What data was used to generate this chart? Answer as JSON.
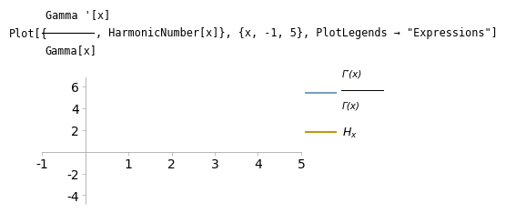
{
  "xmin": -1,
  "xmax": 5,
  "ymin": -4.8,
  "ymax": 6.8,
  "yticks": [
    -4,
    -2,
    2,
    4,
    6
  ],
  "xticks": [
    -1,
    1,
    2,
    3,
    4,
    5
  ],
  "color_digamma": "#7a9fc2",
  "color_harmonic": "#c8960c",
  "bg_color": "#ffffff",
  "title_parts": {
    "prefix": "Plot[{",
    "num": "Gamma '[x]",
    "den": "Gamma[x]",
    "suffix": ", HarmonicNumber[x]}, {x, -1, 5}, PlotLegends → \"Expressions\"]"
  },
  "legend_num": "Γ′(x)",
  "legend_den": "Γ(x)",
  "legend_hx": "H",
  "legend_hx_sub": "x"
}
